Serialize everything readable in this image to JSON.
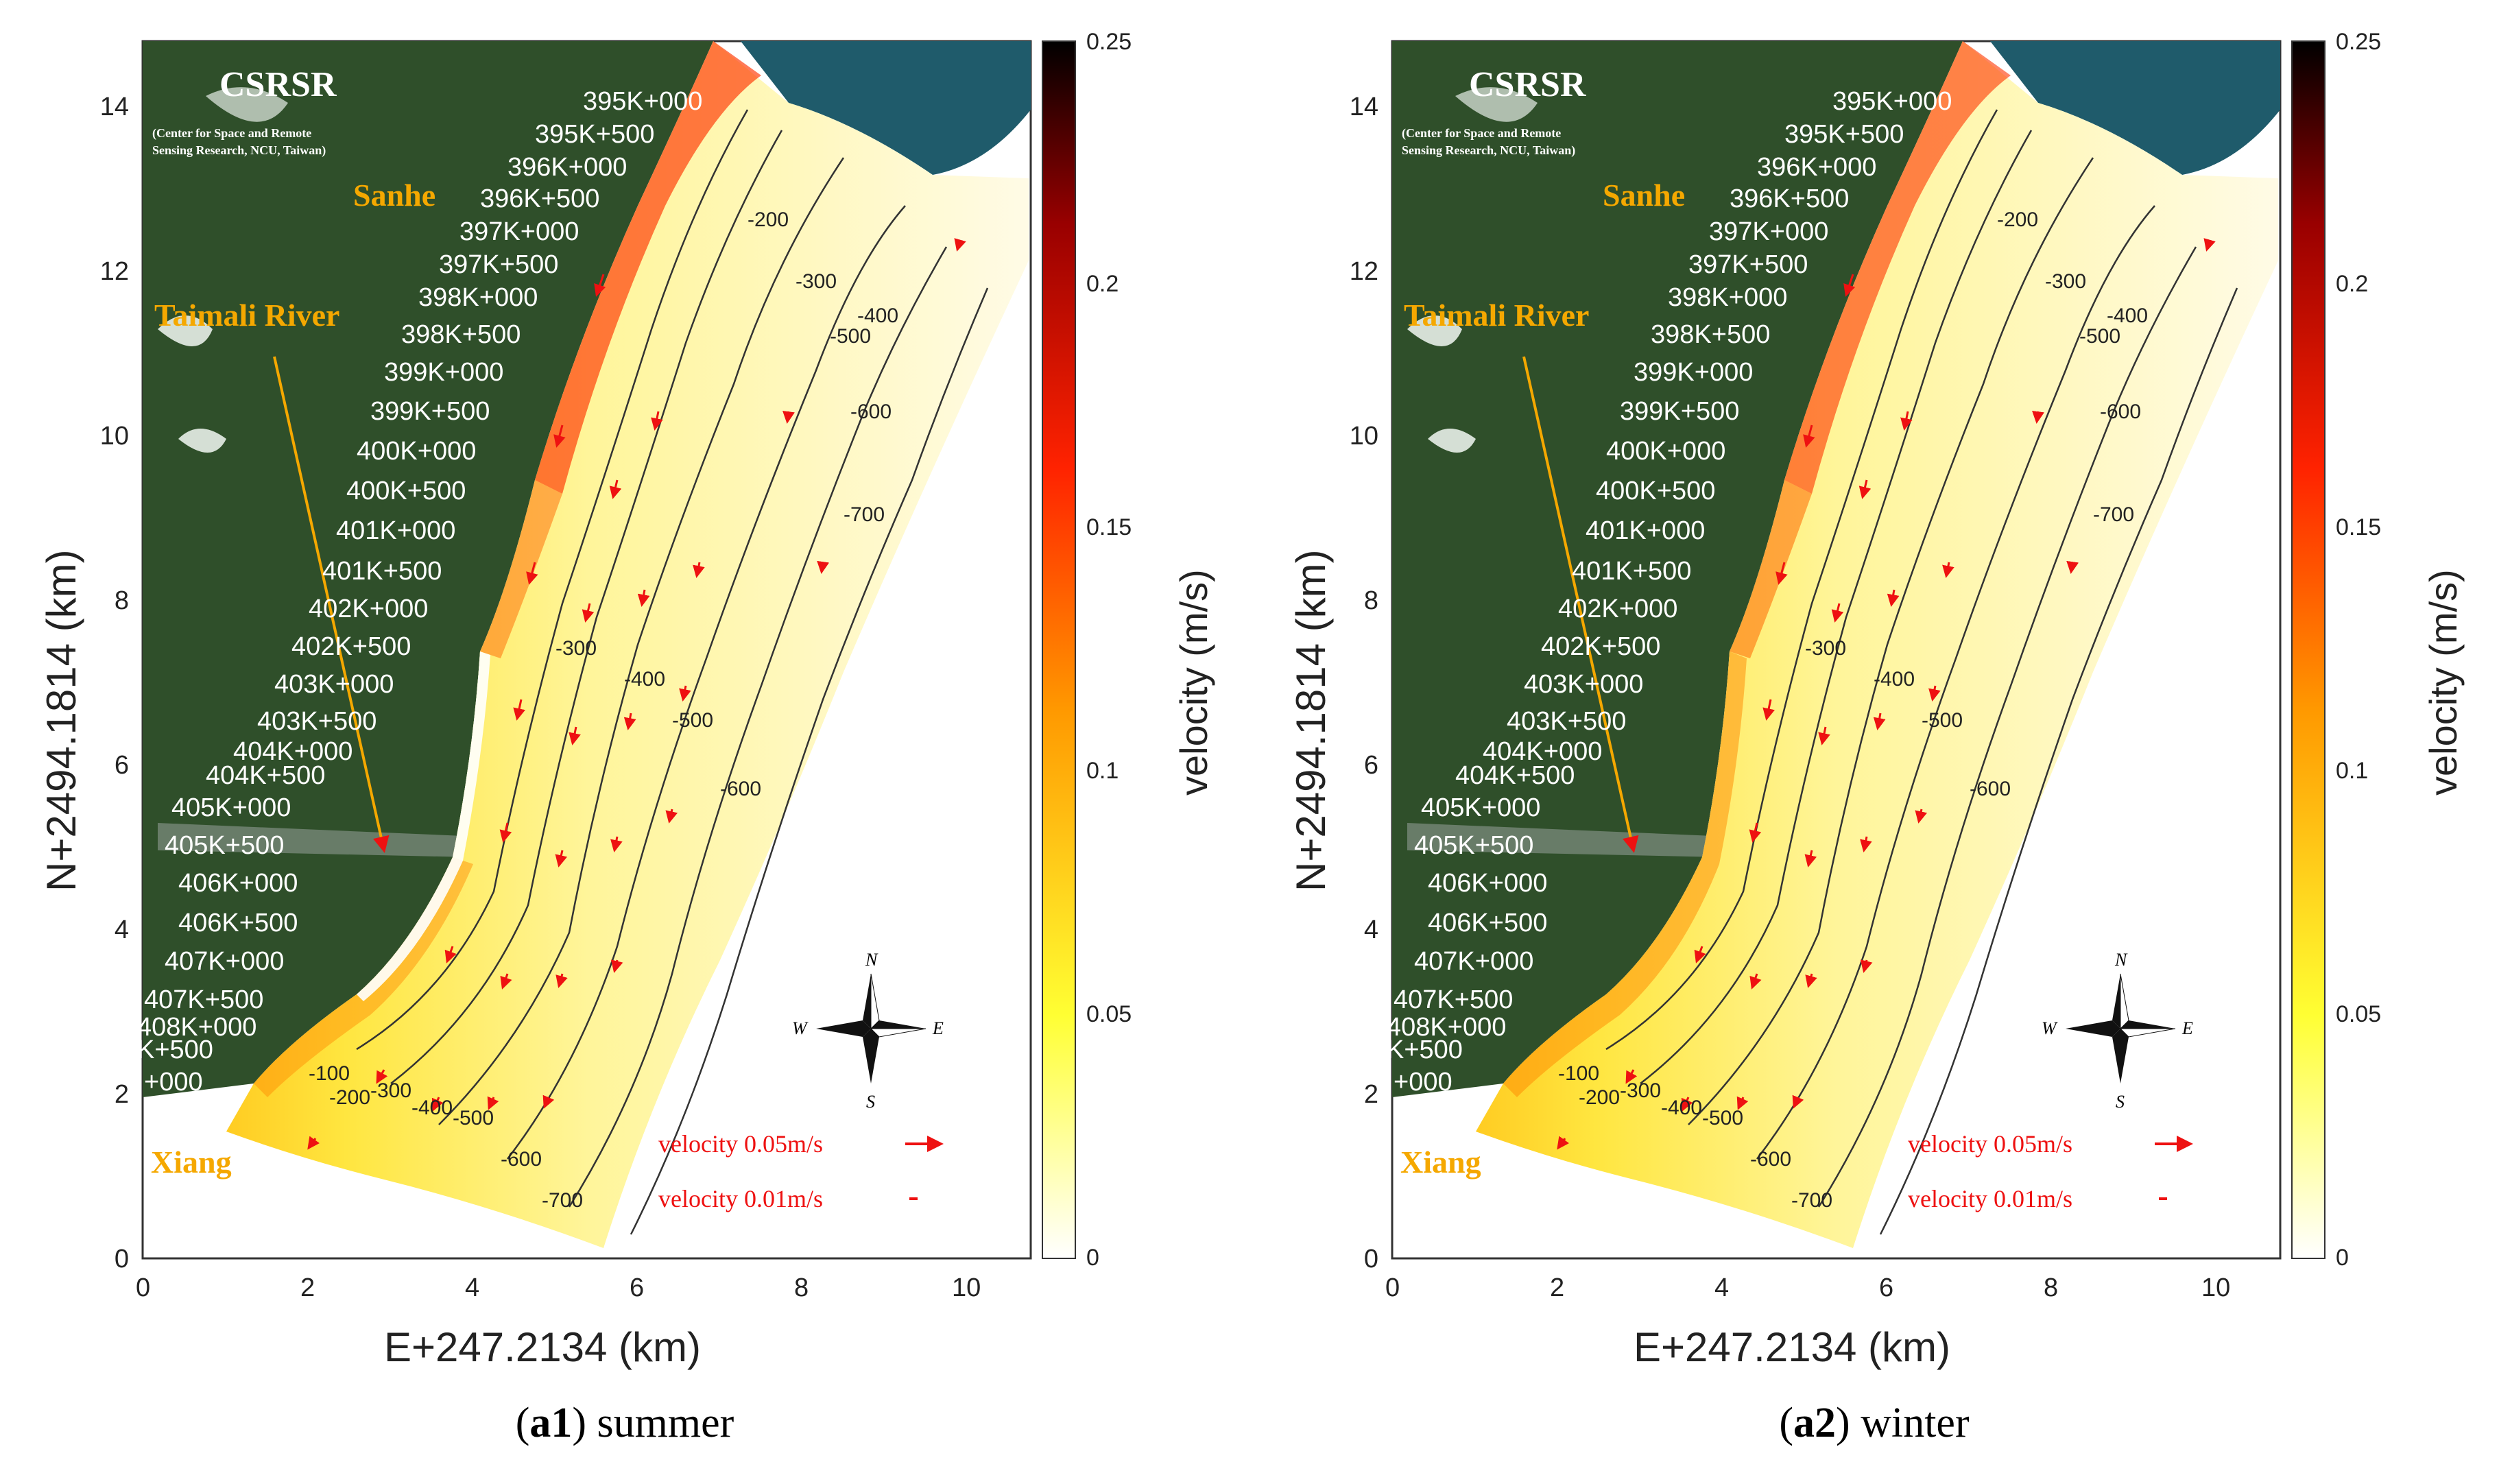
{
  "panels": [
    {
      "caption_id": "a1",
      "caption_season": "summer",
      "map": {
        "logo_text": "CSRSR",
        "logo_subtitle_1": "(Center for Space and Remote",
        "logo_subtitle_2": "Sensing Research, NCU, Taiwan)",
        "place_labels": [
          "Sanhe",
          "Taimali River",
          "Xiang"
        ],
        "station_labels": [
          "395K+000",
          "395K+500",
          "396K+000",
          "396K+500",
          "397K+000",
          "397K+500",
          "398K+000",
          "398K+500",
          "399K+000",
          "399K+500",
          "400K+000",
          "400K+500",
          "401K+000",
          "401K+500",
          "402K+000",
          "402K+500",
          "403K+000",
          "403K+500",
          "404K+000",
          "404K+500",
          "405K+000",
          "405K+500",
          "406K+000",
          "406K+500",
          "407K+000",
          "407K+500",
          "408K+000",
          "K+500",
          "+000"
        ],
        "depth_contour_labels": [
          "-100",
          "-200",
          "-300",
          "-400",
          "-500",
          "-600",
          "-700"
        ],
        "compass_labels": {
          "n": "N",
          "s": "S",
          "e": "E",
          "w": "W"
        },
        "legend": {
          "vector_large": "velocity 0.05m/s",
          "vector_small": "velocity 0.01m/s"
        }
      },
      "axes": {
        "xlabel": "E+247.2134 (km)",
        "ylabel": "N+2494.1814 (km)",
        "x_ticks": [
          "0",
          "2",
          "4",
          "6",
          "8",
          "10"
        ],
        "y_ticks": [
          "0",
          "2",
          "4",
          "6",
          "8",
          "10",
          "12",
          "14"
        ],
        "xlim": [
          0,
          10.8
        ],
        "ylim": [
          0,
          14.8
        ]
      },
      "colorbar": {
        "label": "velocity (m/s)",
        "ticks": [
          "0",
          "0.05",
          "0.1",
          "0.15",
          "0.2",
          "0.25"
        ],
        "range": [
          0,
          0.25
        ],
        "colors": [
          "#ffffff",
          "#ffff33",
          "#ff9900",
          "#ff2200",
          "#990000",
          "#000000"
        ]
      }
    },
    {
      "caption_id": "a2",
      "caption_season": "winter",
      "map": {
        "logo_text": "CSRSR",
        "logo_subtitle_1": "(Center for Space and Remote",
        "logo_subtitle_2": "Sensing Research, NCU, Taiwan)",
        "place_labels": [
          "Sanhe",
          "Taimali River",
          "Xiang"
        ],
        "station_labels": [
          "395K+000",
          "395K+500",
          "396K+000",
          "396K+500",
          "397K+000",
          "397K+500",
          "398K+000",
          "398K+500",
          "399K+000",
          "399K+500",
          "400K+000",
          "400K+500",
          "401K+000",
          "401K+500",
          "402K+000",
          "402K+500",
          "403K+000",
          "403K+500",
          "404K+000",
          "404K+500",
          "405K+000",
          "405K+500",
          "406K+000",
          "406K+500",
          "407K+000",
          "407K+500",
          "408K+000",
          "K+500",
          "+000"
        ],
        "depth_contour_labels": [
          "-100",
          "-200",
          "-300",
          "-400",
          "-500",
          "-600",
          "-700"
        ],
        "compass_labels": {
          "n": "N",
          "s": "S",
          "e": "E",
          "w": "W"
        },
        "legend": {
          "vector_large": "velocity 0.05m/s",
          "vector_small": "velocity 0.01m/s"
        }
      },
      "axes": {
        "xlabel": "E+247.2134 (km)",
        "ylabel": "N+2494.1814 (km)",
        "x_ticks": [
          "0",
          "2",
          "4",
          "6",
          "8",
          "10"
        ],
        "y_ticks": [
          "0",
          "2",
          "4",
          "6",
          "8",
          "10",
          "12",
          "14"
        ],
        "xlim": [
          0,
          10.8
        ],
        "ylim": [
          0,
          14.8
        ]
      },
      "colorbar": {
        "label": "velocity (m/s)",
        "ticks": [
          "0",
          "0.05",
          "0.1",
          "0.15",
          "0.2",
          "0.25"
        ],
        "range": [
          0,
          0.25
        ],
        "colors": [
          "#ffffff",
          "#ffff33",
          "#ff9900",
          "#ff2200",
          "#990000",
          "#000000"
        ]
      }
    }
  ]
}
